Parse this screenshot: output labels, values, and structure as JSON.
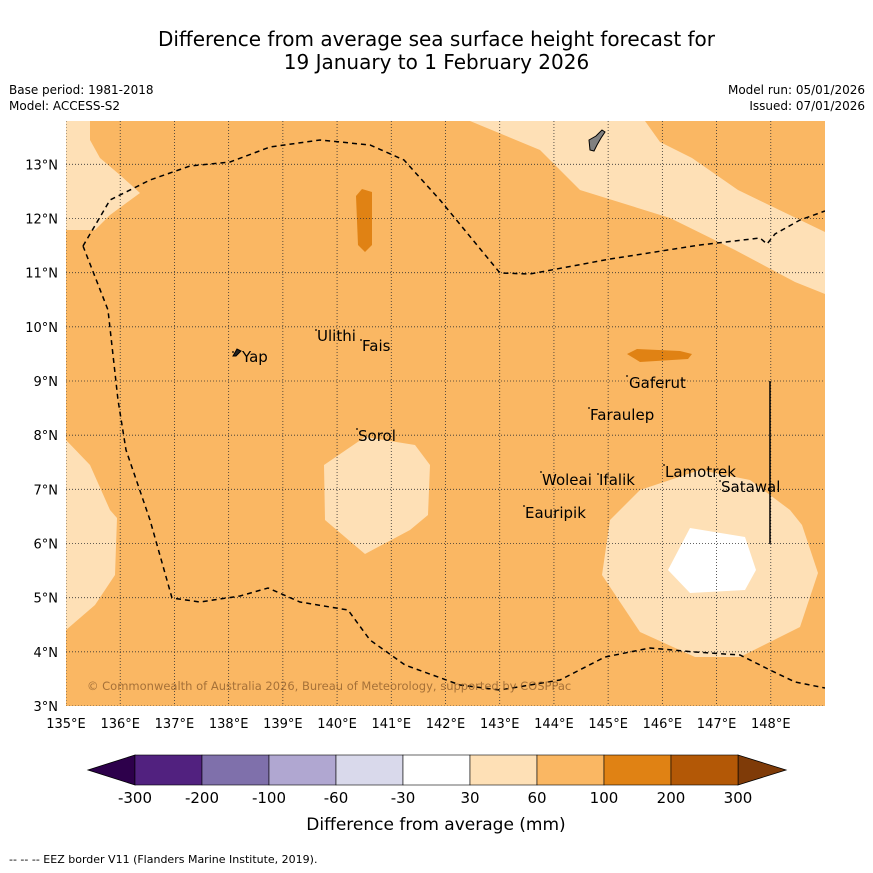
{
  "title_line1": "Difference from average sea surface height forecast for",
  "title_line2": "19 January to 1 February 2026",
  "base_period": "Base period: 1981-2018",
  "model": "Model: ACCESS-S2",
  "model_run": "Model run: 05/01/2026",
  "issued": "Issued: 07/01/2026",
  "copyright": "© Commonwealth of Australia 2026, Bureau of Meteorology, supported by COSPPac",
  "footnote": "--  --  -- EEZ border V11 (Flanders Marine Institute, 2019).",
  "map": {
    "lon_range": [
      135,
      149
    ],
    "lat_range": [
      3,
      13.8
    ],
    "lon_ticks": [
      "135°E",
      "136°E",
      "137°E",
      "138°E",
      "139°E",
      "140°E",
      "141°E",
      "142°E",
      "143°E",
      "144°E",
      "145°E",
      "146°E",
      "147°E",
      "148°E"
    ],
    "lat_ticks": [
      "3°N",
      "4°N",
      "5°N",
      "6°N",
      "7°N",
      "8°N",
      "9°N",
      "10°N",
      "11°N",
      "12°N",
      "13°N"
    ]
  },
  "places": [
    {
      "name": "Yap"
    },
    {
      "name": "Ulithi"
    },
    {
      "name": "Fais"
    },
    {
      "name": "Gaferut"
    },
    {
      "name": "Faraulep"
    },
    {
      "name": "Sorol"
    },
    {
      "name": "Woleai"
    },
    {
      "name": "Ifalik"
    },
    {
      "name": "Lamotrek"
    },
    {
      "name": "Satawal"
    },
    {
      "name": "Eauripik"
    }
  ],
  "colorbar": {
    "title": "Difference from average (mm)",
    "tick_labels": [
      "-300",
      "-200",
      "-100",
      "-60",
      "-30",
      "30",
      "60",
      "100",
      "200",
      "300"
    ],
    "colors": [
      "#51217f",
      "#7f70ab",
      "#b0a7d1",
      "#d9d9eb",
      "#ffffff",
      "#fee0b6",
      "#fab763",
      "#e08214",
      "#b35806"
    ],
    "extend_low_color": "#2d004b",
    "extend_high_color": "#7f3b08"
  },
  "colors": {
    "base": "#fab763",
    "light": "#fee0b6",
    "dark": "#e08214",
    "white": "#ffffff"
  }
}
